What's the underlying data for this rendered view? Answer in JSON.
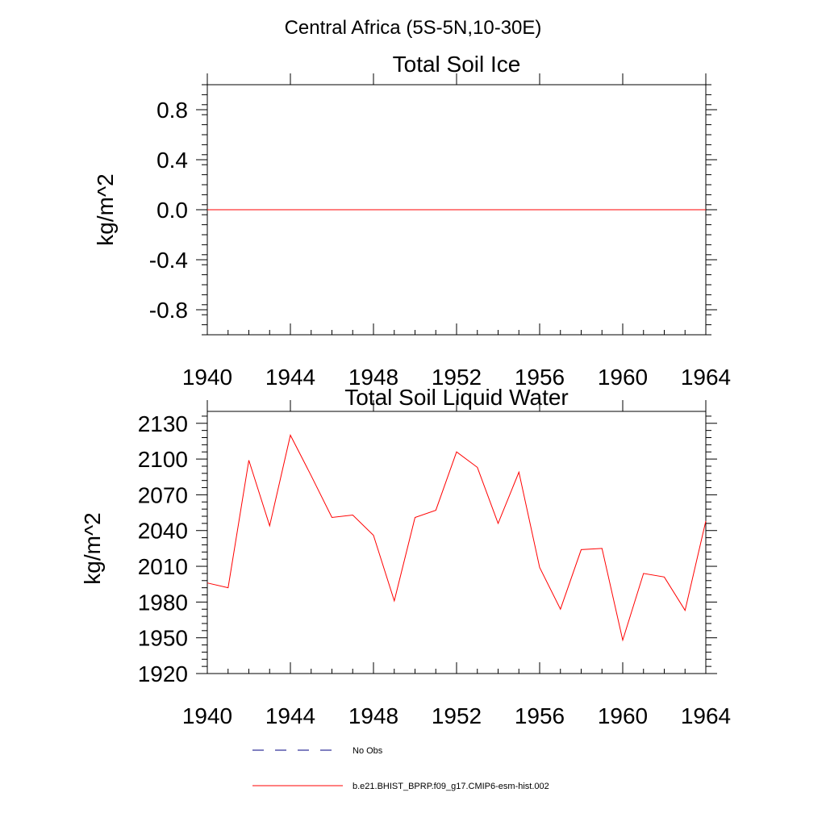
{
  "figure": {
    "title": "Central Africa (5S-5N,10-30E)"
  },
  "chart_data": [
    {
      "type": "line",
      "title": "Total Soil Ice",
      "xlabel": "",
      "ylabel": "kg/m^2",
      "xlim": [
        1940,
        1964
      ],
      "ylim": [
        -1.0,
        1.0
      ],
      "x_ticks": [
        1940,
        1944,
        1948,
        1952,
        1956,
        1960,
        1964
      ],
      "x_tick_labels": [
        "1940",
        "1944",
        "1948",
        "1952",
        "1956",
        "1960",
        "1964"
      ],
      "y_ticks": [
        -0.8,
        -0.4,
        0.0,
        0.4,
        0.8
      ],
      "y_tick_labels": [
        "-0.8",
        "-0.4",
        "0.0",
        "0.4",
        "0.8"
      ],
      "grid": false,
      "series": [
        {
          "name": "b.e21.BHIST_BPRP.f09_g17.CMIP6-esm-hist.002",
          "color": "#ff0000",
          "x": [
            1940,
            1941,
            1942,
            1943,
            1944,
            1945,
            1946,
            1947,
            1948,
            1949,
            1950,
            1951,
            1952,
            1953,
            1954,
            1955,
            1956,
            1957,
            1958,
            1959,
            1960,
            1961,
            1962,
            1963,
            1964
          ],
          "values": [
            0,
            0,
            0,
            0,
            0,
            0,
            0,
            0,
            0,
            0,
            0,
            0,
            0,
            0,
            0,
            0,
            0,
            0,
            0,
            0,
            0,
            0,
            0,
            0,
            0
          ]
        }
      ]
    },
    {
      "type": "line",
      "title": "Total Soil Liquid Water",
      "xlabel": "",
      "ylabel": "kg/m^2",
      "xlim": [
        1940,
        1964
      ],
      "ylim": [
        1920,
        2140
      ],
      "x_ticks": [
        1940,
        1944,
        1948,
        1952,
        1956,
        1960,
        1964
      ],
      "x_tick_labels": [
        "1940",
        "1944",
        "1948",
        "1952",
        "1956",
        "1960",
        "1964"
      ],
      "y_ticks": [
        1920,
        1950,
        1980,
        2010,
        2040,
        2070,
        2100,
        2130
      ],
      "y_tick_labels": [
        "1920",
        "1950",
        "1980",
        "2010",
        "2040",
        "2070",
        "2100",
        "2130"
      ],
      "grid": false,
      "series": [
        {
          "name": "b.e21.BHIST_BPRP.f09_g17.CMIP6-esm-hist.002",
          "color": "#ff0000",
          "x": [
            1940,
            1941,
            1942,
            1943,
            1944,
            1945,
            1946,
            1947,
            1948,
            1949,
            1950,
            1951,
            1952,
            1953,
            1954,
            1955,
            1956,
            1957,
            1958,
            1959,
            1960,
            1961,
            1962,
            1963,
            1964
          ],
          "values": [
            1996,
            1992,
            2099,
            2044,
            2120,
            2086,
            2051,
            2053,
            2036,
            1981,
            2051,
            2057,
            2106,
            2093,
            2046,
            2089,
            2009,
            1974,
            2024,
            2025,
            1948,
            2004,
            2001,
            1973,
            2048
          ]
        }
      ]
    }
  ],
  "legend": {
    "placement": "bottom",
    "items": [
      {
        "label": "No Obs",
        "style": "dashed",
        "color": "#000080"
      },
      {
        "label": "b.e21.BHIST_BPRP.f09_g17.CMIP6-esm-hist.002",
        "style": "solid",
        "color": "#ff0000"
      }
    ]
  }
}
